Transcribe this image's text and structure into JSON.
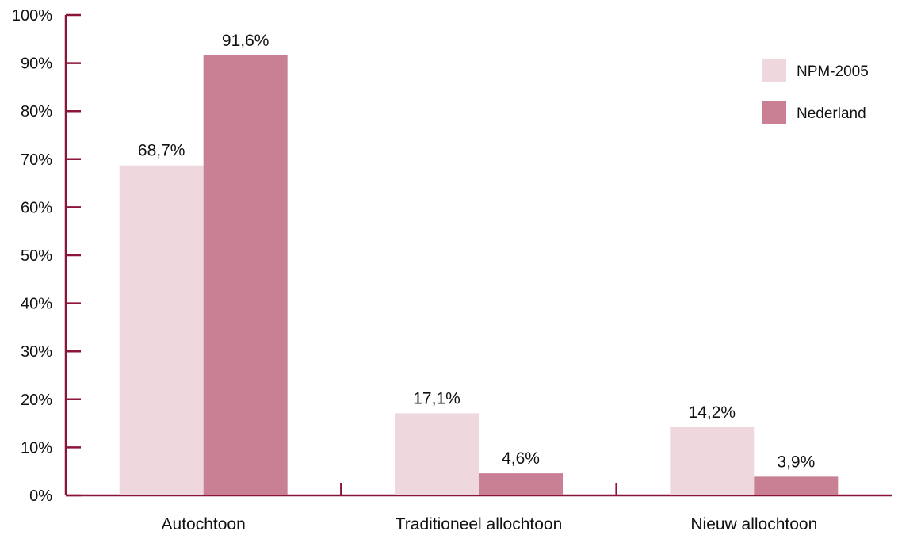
{
  "chart_data": {
    "type": "bar",
    "categories": [
      "Autochtoon",
      "Traditioneel allochtoon",
      "Nieuw allochtoon"
    ],
    "series": [
      {
        "name": "NPM-2005",
        "values": [
          68.7,
          17.1,
          14.2
        ],
        "labels": [
          "68,7%",
          "17,1%",
          "14,2%"
        ],
        "color": "#efd7de"
      },
      {
        "name": "Nederland",
        "values": [
          91.6,
          4.6,
          3.9
        ],
        "labels": [
          "91,6%",
          "4,6%",
          "3,9%"
        ],
        "color": "#c98094"
      }
    ],
    "ylim": [
      0,
      100
    ],
    "yticks": [
      0,
      10,
      20,
      30,
      40,
      50,
      60,
      70,
      80,
      90,
      100
    ],
    "ytick_labels": [
      "0%",
      "10%",
      "20%",
      "30%",
      "40%",
      "50%",
      "60%",
      "70%",
      "80%",
      "90%",
      "100%"
    ],
    "title": "",
    "xlabel": "",
    "ylabel": "",
    "grid": false,
    "legend_position": "top-right",
    "axis_color": "#8a1538"
  }
}
